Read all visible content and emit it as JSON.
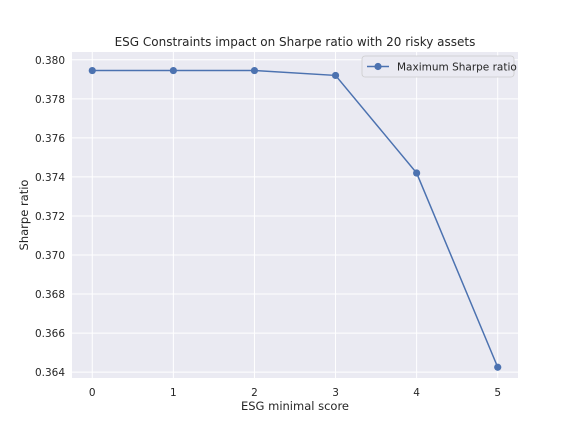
{
  "chart_data": {
    "type": "line",
    "title": "ESG Constraints impact on Sharpe ratio with 20 risky assets",
    "xlabel": "ESG minimal score",
    "ylabel": "Sharpe ratio",
    "x": [
      0,
      1,
      2,
      3,
      4,
      5
    ],
    "xticks": [
      "0",
      "1",
      "2",
      "3",
      "4",
      "5"
    ],
    "yticks": [
      "0.364",
      "0.366",
      "0.368",
      "0.370",
      "0.372",
      "0.374",
      "0.376",
      "0.378",
      "0.380"
    ],
    "ytick_values": [
      0.364,
      0.366,
      0.368,
      0.37,
      0.372,
      0.374,
      0.376,
      0.378,
      0.38
    ],
    "xlim": [
      -0.25,
      5.25
    ],
    "ylim": [
      0.3637,
      0.3804
    ],
    "grid": true,
    "legend_position": "top-right",
    "series": [
      {
        "name": "Maximum Sharpe ratio",
        "color": "#4c72b0",
        "marker": "circle",
        "values": [
          0.37945,
          0.37945,
          0.37945,
          0.3792,
          0.3742,
          0.36425
        ]
      }
    ],
    "style": {
      "plot_background": "#eaeaf2",
      "grid_color": "#ffffff"
    }
  }
}
